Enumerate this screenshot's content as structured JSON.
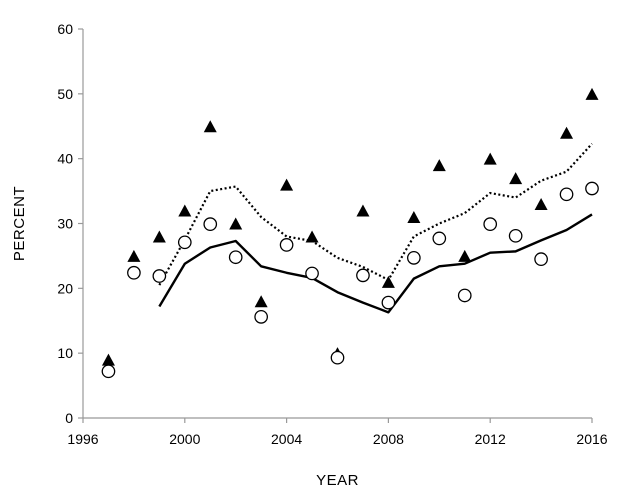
{
  "chart_data": {
    "type": "scatter",
    "title": "",
    "xlabel": "YEAR",
    "ylabel": "PERCENT",
    "xlim": [
      1996,
      2016
    ],
    "ylim": [
      0,
      60
    ],
    "xticks": [
      1996,
      2000,
      2004,
      2008,
      2012,
      2016
    ],
    "yticks": [
      0,
      10,
      20,
      30,
      40,
      50,
      60
    ],
    "grid": false,
    "legend": "none",
    "series": [
      {
        "type": "scatter",
        "marker": "filled-triangle",
        "color": "#000000",
        "x": [
          1997,
          1998,
          1999,
          2000,
          2001,
          2002,
          2003,
          2004,
          2005,
          2006,
          2007,
          2008,
          2009,
          2010,
          2011,
          2012,
          2013,
          2014,
          2015,
          2016
        ],
        "values": [
          9,
          25,
          28,
          32,
          45,
          30,
          18,
          36,
          28,
          10,
          32,
          21,
          31,
          39,
          25,
          40,
          37,
          33,
          44,
          50
        ]
      },
      {
        "type": "scatter",
        "marker": "open-circle",
        "color": "#000000",
        "x": [
          1997,
          1998,
          1999,
          2000,
          2001,
          2002,
          2003,
          2004,
          2005,
          2006,
          2007,
          2008,
          2009,
          2010,
          2011,
          2012,
          2013,
          2014,
          2015,
          2016
        ],
        "values": [
          7.2,
          22.4,
          21.9,
          27.1,
          29.9,
          24.8,
          15.6,
          26.7,
          22.3,
          9.3,
          22.0,
          17.8,
          24.7,
          27.7,
          18.9,
          29.9,
          28.1,
          24.5,
          34.5,
          35.4
        ]
      },
      {
        "type": "line",
        "style": "dotted",
        "color": "#000000",
        "x": [
          1999,
          2000,
          2001,
          2002,
          2003,
          2004,
          2005,
          2006,
          2007,
          2008,
          2009,
          2010,
          2011,
          2012,
          2013,
          2014,
          2015,
          2016
        ],
        "values": [
          20.5,
          27.5,
          35.0,
          35.7,
          31.0,
          28.0,
          27.3,
          24.7,
          23.3,
          21.3,
          28.0,
          30.0,
          31.6,
          34.7,
          34.0,
          36.6,
          38.0,
          42.3
        ]
      },
      {
        "type": "line",
        "style": "solid",
        "color": "#000000",
        "x": [
          1999,
          2000,
          2001,
          2002,
          2003,
          2004,
          2005,
          2006,
          2007,
          2008,
          2009,
          2010,
          2011,
          2012,
          2013,
          2014,
          2015,
          2016
        ],
        "values": [
          17.2,
          23.8,
          26.3,
          27.3,
          23.4,
          22.4,
          21.6,
          19.4,
          17.8,
          16.3,
          21.5,
          23.4,
          23.8,
          25.5,
          25.7,
          27.4,
          29.0,
          31.4
        ]
      }
    ]
  }
}
